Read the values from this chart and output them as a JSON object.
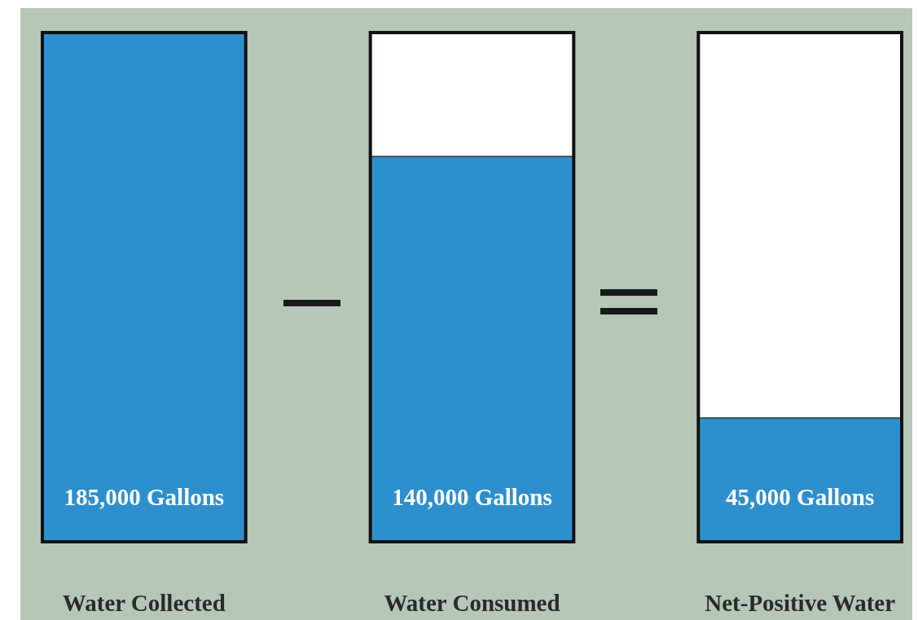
{
  "chart_data": {
    "type": "bar",
    "categories": [
      "Water Collected",
      "Water Consumed",
      "Net-Positive Water"
    ],
    "values": [
      185000,
      140000,
      45000
    ],
    "color": "#2e8fcd",
    "value_labels": [
      "185,000 Gallons",
      "140,000 Gallons",
      "45,000 Gallons"
    ]
  }
}
